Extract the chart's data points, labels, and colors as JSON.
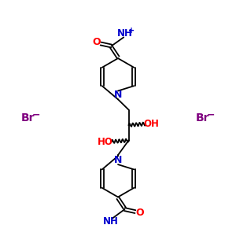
{
  "background_color": "#ffffff",
  "line_color": "#000000",
  "N_color": "#0000cd",
  "O_color": "#ff0000",
  "Br_color": "#800080",
  "bond_lw": 1.3,
  "figsize": [
    3.0,
    3.0
  ],
  "dpi": 100,
  "xlim": [
    0,
    10
  ],
  "ylim": [
    0,
    10
  ]
}
